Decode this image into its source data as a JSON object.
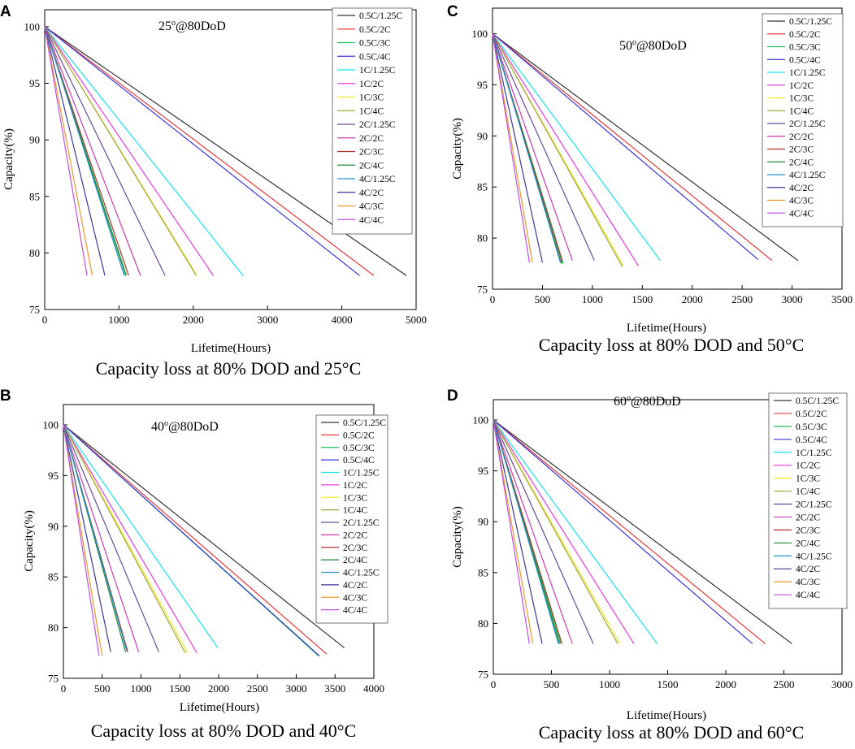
{
  "series_names": [
    "0.5C/1.25C",
    "0.5C/2C",
    "0.5C/3C",
    "0.5C/4C",
    "1C/1.25C",
    "1C/2C",
    "1C/3C",
    "1C/4C",
    "2C/1.25C",
    "2C/2C",
    "2C/3C",
    "2C/4C",
    "4C/1.25C",
    "4C/2C",
    "4C/3C",
    "4C/4C"
  ],
  "series_colors": [
    "#333333",
    "#e83a3a",
    "#1bbf55",
    "#3a3ad9",
    "#19e3ea",
    "#ea3ae0",
    "#ecec2a",
    "#a4a43a",
    "#6a4a9a",
    "#cf3ab4",
    "#b0342e",
    "#1f8a38",
    "#2490c9",
    "#3a3a9a",
    "#ea9a2a",
    "#c050e0"
  ],
  "chart_data": [
    {
      "type": "line",
      "panel": "A",
      "title_main": "25",
      "title_sup": "o",
      "title_rest": "@80DoD",
      "xlabel": "Lifetime(Hours)",
      "ylabel": "Capacity(%)",
      "caption": "Capacity loss at 80% DOD and 25°C",
      "xlim": [
        0,
        5000
      ],
      "ylim": [
        75,
        101.5
      ],
      "xticks": [
        0,
        1000,
        2000,
        3000,
        4000,
        5000
      ],
      "yticks": [
        75,
        80,
        85,
        90,
        95,
        100
      ],
      "end_y": 78,
      "end_x": [
        4870,
        4430,
        1100,
        4240,
        2670,
        2270,
        2050,
        2040,
        1620,
        1290,
        1130,
        1090,
        1070,
        810,
        640,
        570
      ]
    },
    {
      "type": "line",
      "panel": "B",
      "title_main": "40",
      "title_sup": "o",
      "title_rest": "@80DoD",
      "xlabel": "Lifetime(Hours)",
      "ylabel": "Capacity(%)",
      "caption": "Capacity loss at 80% DOD and 40°C",
      "xlim": [
        0,
        4000
      ],
      "ylim": [
        75,
        102
      ],
      "xticks": [
        0,
        500,
        1000,
        1500,
        2000,
        2500,
        3000,
        3500,
        4000
      ],
      "yticks": [
        75,
        80,
        85,
        90,
        95,
        100
      ],
      "end_y": [
        78,
        77.4,
        77.2,
        77.2,
        78,
        77.5,
        77.5,
        77.5,
        77.6,
        77.6,
        77.6,
        77.6,
        77.6,
        77.6,
        77.2,
        77.2
      ],
      "end_x": [
        3620,
        3390,
        3290,
        3300,
        1990,
        1720,
        1600,
        1570,
        1230,
        970,
        830,
        800,
        820,
        610,
        500,
        460
      ]
    },
    {
      "type": "line",
      "panel": "C",
      "title_main": "50",
      "title_sup": "o",
      "title_rest": "@80DoD",
      "xlabel": "Lifetime(Hours)",
      "ylabel": "Capacity(%)",
      "caption": "Capacity loss at 80% DOD and 50°C",
      "xlim": [
        0,
        3500
      ],
      "ylim": [
        75,
        102.5
      ],
      "xticks": [
        0,
        500,
        1000,
        1500,
        2000,
        2500,
        3000,
        3500
      ],
      "yticks": [
        75,
        80,
        85,
        90,
        95,
        100
      ],
      "end_y": [
        77.8,
        77.8,
        77.5,
        77.9,
        77.8,
        77.3,
        77.3,
        77.2,
        77.8,
        77.8,
        77.6,
        77.5,
        77.6,
        77.6,
        77.6,
        77.6
      ],
      "end_x": [
        3060,
        2800,
        710,
        2660,
        1680,
        1460,
        1310,
        1300,
        1020,
        800,
        700,
        690,
        680,
        500,
        400,
        370
      ]
    },
    {
      "type": "line",
      "panel": "D",
      "title_main": "60",
      "title_sup": "o",
      "title_rest": "@80DoD",
      "xlabel": "Lifetime(Hours)",
      "ylabel": "Capacity(%)",
      "caption": "Capacity loss at 80% DOD and 60°C",
      "xlim": [
        0,
        3000
      ],
      "ylim": [
        75,
        102
      ],
      "xticks": [
        0,
        500,
        1000,
        1500,
        2000,
        2500,
        3000
      ],
      "yticks": [
        75,
        80,
        85,
        90,
        95,
        100
      ],
      "end_y": 78,
      "end_x": [
        2570,
        2340,
        580,
        2230,
        1410,
        1210,
        1090,
        1070,
        860,
        680,
        590,
        570,
        560,
        420,
        340,
        310
      ]
    }
  ]
}
